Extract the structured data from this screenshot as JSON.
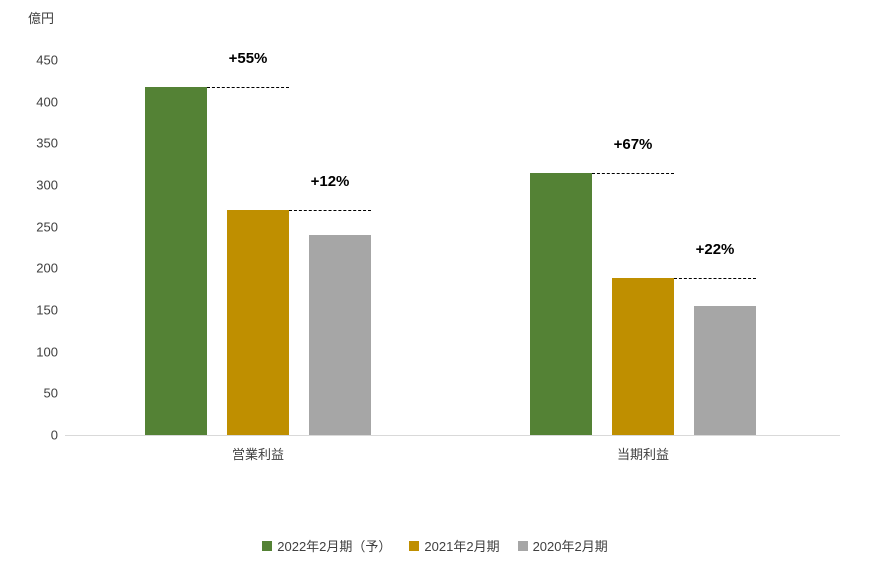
{
  "chart_data": {
    "type": "bar",
    "title": "",
    "unit_label": "億円",
    "categories": [
      "営業利益",
      "当期利益"
    ],
    "series": [
      {
        "name": "2022年2月期（予）",
        "color": "#548235",
        "values": [
          418,
          315
        ]
      },
      {
        "name": "2021年2月期",
        "color": "#BF8F00",
        "values": [
          270,
          188
        ]
      },
      {
        "name": "2020年2月期",
        "color": "#A6A6A6",
        "values": [
          240,
          155
        ]
      }
    ],
    "growth_labels": [
      {
        "category_index": 0,
        "series_index": 0,
        "text": "+55%"
      },
      {
        "category_index": 0,
        "series_index": 1,
        "text": "+12%"
      },
      {
        "category_index": 1,
        "series_index": 0,
        "text": "+67%"
      },
      {
        "category_index": 1,
        "series_index": 1,
        "text": "+22%"
      }
    ],
    "ylim": [
      0,
      450
    ],
    "ytick_step": 50,
    "grid": false,
    "legend_position": "bottom",
    "annotation_line_style": "dashed",
    "colors": {
      "axis_line": "#D9D9D9",
      "axis_text": "#404040",
      "annotation_text": "#000000",
      "legend_text": "#404040",
      "background": "#FFFFFF"
    }
  }
}
